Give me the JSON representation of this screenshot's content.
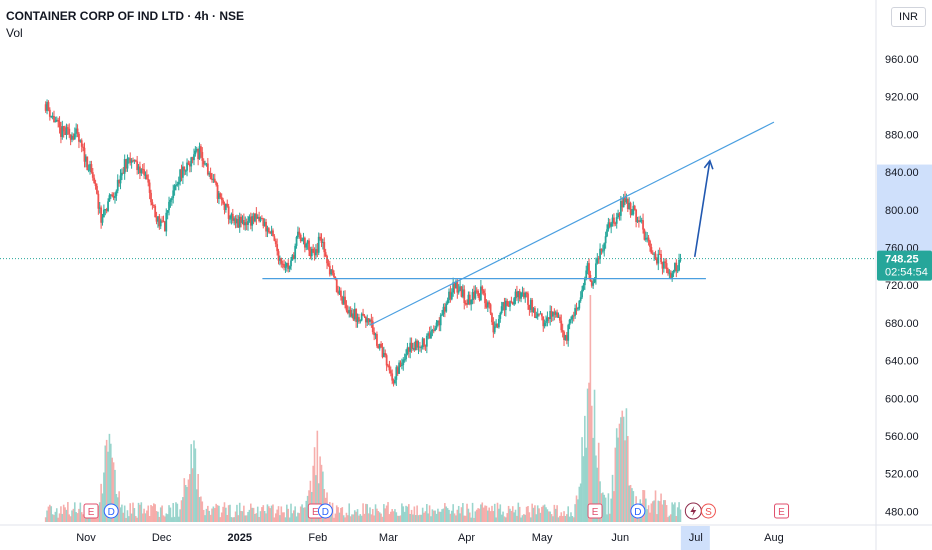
{
  "header": {
    "title": "CONTAINER CORP OF IND LTD · 4h · NSE",
    "indicator": "Vol"
  },
  "currency_button": "INR",
  "colors": {
    "up": "#26a69a",
    "down": "#ef5350",
    "trendline": "#4a9fe0",
    "arrow": "#2158b0",
    "price_label_bg": "#26a69a",
    "axis_highlight": "#cfe0fb",
    "event_earnings": "#e04f6c",
    "event_dividend": "#2962ff",
    "event_split": "#ef5350"
  },
  "chart_data": {
    "type": "candlestick",
    "interval": "4h",
    "y_axis": {
      "ticks": [
        "960.00",
        "920.00",
        "880.00",
        "840.00",
        "800.00",
        "760.00",
        "720.00",
        "680.00",
        "640.00",
        "600.00",
        "560.00",
        "520.00",
        "480.00"
      ],
      "range": [
        469,
        988
      ]
    },
    "x_axis": {
      "ticks": [
        "Nov",
        "Dec",
        "2025",
        "Feb",
        "Mar",
        "Apr",
        "May",
        "Jun",
        "Jul",
        "Aug"
      ],
      "highlighted": "Jul"
    },
    "price_path": [
      [
        "2024-10-16",
        912
      ],
      [
        "2024-10-22",
        882
      ],
      [
        "2024-10-28",
        880
      ],
      [
        "2024-11-04",
        832
      ],
      [
        "2024-11-07",
        790
      ],
      [
        "2024-11-12",
        818
      ],
      [
        "2024-11-18",
        858
      ],
      [
        "2024-11-25",
        836
      ],
      [
        "2024-11-28",
        798
      ],
      [
        "2024-12-02",
        780
      ],
      [
        "2024-12-05",
        818
      ],
      [
        "2024-12-10",
        845
      ],
      [
        "2024-12-16",
        862
      ],
      [
        "2024-12-20",
        838
      ],
      [
        "2024-12-24",
        812
      ],
      [
        "2024-12-30",
        784
      ],
      [
        "2025-01-06",
        790
      ],
      [
        "2025-01-10",
        788
      ],
      [
        "2025-01-14",
        770
      ],
      [
        "2025-01-17",
        748
      ],
      [
        "2025-01-21",
        738
      ],
      [
        "2025-01-24",
        772
      ],
      [
        "2025-01-28",
        762
      ],
      [
        "2025-01-31",
        748
      ],
      [
        "2025-02-02",
        775
      ],
      [
        "2025-02-04",
        745
      ],
      [
        "2025-02-06",
        735
      ],
      [
        "2025-02-10",
        710
      ],
      [
        "2025-02-14",
        690
      ],
      [
        "2025-02-18",
        685
      ],
      [
        "2025-02-21",
        688
      ],
      [
        "2025-02-25",
        655
      ],
      [
        "2025-03-03",
        622
      ],
      [
        "2025-03-06",
        640
      ],
      [
        "2025-03-10",
        655
      ],
      [
        "2025-03-14",
        658
      ],
      [
        "2025-03-19",
        668
      ],
      [
        "2025-03-24",
        700
      ],
      [
        "2025-03-27",
        722
      ],
      [
        "2025-04-01",
        704
      ],
      [
        "2025-04-07",
        712
      ],
      [
        "2025-04-10",
        696
      ],
      [
        "2025-04-12",
        670
      ],
      [
        "2025-04-15",
        695
      ],
      [
        "2025-04-18",
        702
      ],
      [
        "2025-04-23",
        712
      ],
      [
        "2025-04-28",
        692
      ],
      [
        "2025-05-01",
        682
      ],
      [
        "2025-05-05",
        692
      ],
      [
        "2025-05-08",
        680
      ],
      [
        "2025-05-10",
        662
      ],
      [
        "2025-05-13",
        685
      ],
      [
        "2025-05-16",
        698
      ],
      [
        "2025-05-19",
        740
      ],
      [
        "2025-05-21",
        722
      ],
      [
        "2025-05-23",
        745
      ],
      [
        "2025-05-27",
        780
      ],
      [
        "2025-05-30",
        790
      ],
      [
        "2025-06-03",
        812
      ],
      [
        "2025-06-05",
        802
      ],
      [
        "2025-06-09",
        788
      ],
      [
        "2025-06-11",
        770
      ],
      [
        "2025-06-13",
        755
      ],
      [
        "2025-06-16",
        748
      ],
      [
        "2025-06-18",
        742
      ],
      [
        "2025-06-20",
        730
      ],
      [
        "2025-06-23",
        738
      ],
      [
        "2025-06-25",
        748.25
      ]
    ],
    "volume_peak_dates": [
      "2024-11-10",
      "2024-12-13",
      "2025-02-01",
      "2025-05-19",
      "2025-05-20",
      "2025-06-02"
    ],
    "last_price": {
      "value": "748.25",
      "countdown": "02:54:54"
    },
    "annotations": {
      "horizontal_line": {
        "from": "2025-01-10",
        "to": "2025-07-05",
        "value": 727
      },
      "rising_trendline": {
        "from": [
          "2025-02-22",
          678
        ],
        "to": [
          "2025-08-01",
          893
        ]
      },
      "projection_arrow": {
        "from": [
          "2025-06-25",
          750
        ],
        "to": [
          "2025-07-01",
          852
        ]
      }
    },
    "events": [
      {
        "type": "E",
        "date": "2024-11-03"
      },
      {
        "type": "D",
        "date": "2024-11-11"
      },
      {
        "type": "E",
        "date": "2025-01-31"
      },
      {
        "type": "D",
        "date": "2025-02-04"
      },
      {
        "type": "E",
        "date": "2025-05-22"
      },
      {
        "type": "D",
        "date": "2025-06-08"
      },
      {
        "type": "split",
        "date": "2025-06-30"
      },
      {
        "type": "S",
        "date": "2025-07-06"
      },
      {
        "type": "E",
        "date": "2025-08-04"
      }
    ]
  }
}
